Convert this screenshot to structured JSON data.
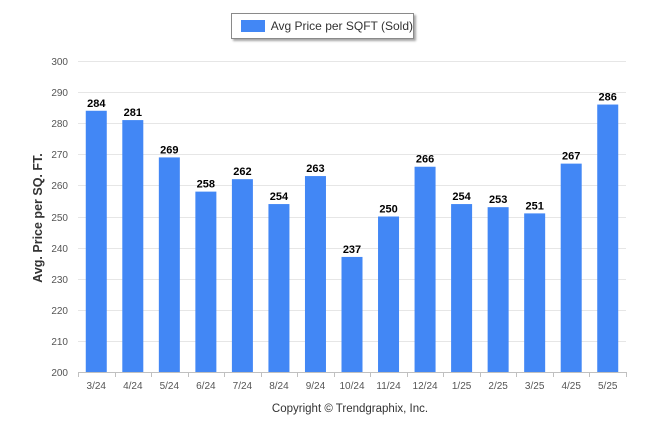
{
  "colors": {
    "bar": "#4287f5",
    "grid": "#e6e6e6",
    "axis": "#c0c0c0"
  },
  "legend": {
    "label": "Avg Price per SQFT (Sold)"
  },
  "copyright": "Copyright © Trendgraphix, Inc.",
  "chart_data": {
    "type": "bar",
    "title": "",
    "xlabel": "",
    "ylabel": "Avg. Price per SQ. FT.",
    "ylim": [
      200,
      300
    ],
    "yticks": [
      200,
      210,
      220,
      230,
      240,
      250,
      260,
      270,
      280,
      290,
      300
    ],
    "grid": true,
    "legend_position": "top-center",
    "categories": [
      "3/24",
      "4/24",
      "5/24",
      "6/24",
      "7/24",
      "8/24",
      "9/24",
      "10/24",
      "11/24",
      "12/24",
      "1/25",
      "2/25",
      "3/25",
      "4/25",
      "5/25"
    ],
    "series": [
      {
        "name": "Avg Price per SQFT (Sold)",
        "values": [
          284,
          281,
          269,
          258,
          262,
          254,
          263,
          237,
          250,
          266,
          254,
          253,
          251,
          267,
          286
        ]
      }
    ],
    "data_labels": true
  }
}
